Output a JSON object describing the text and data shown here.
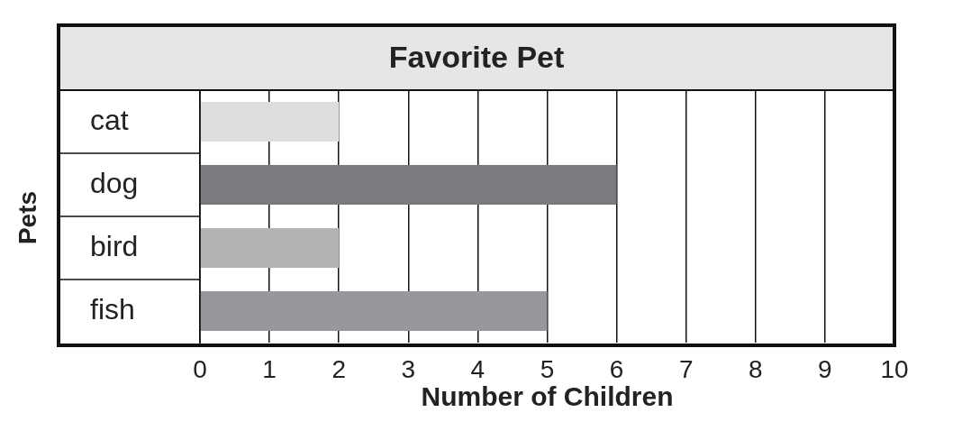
{
  "chart_data": {
    "type": "bar",
    "orientation": "horizontal",
    "title": "Favorite Pet",
    "xlabel": "Number of Children",
    "ylabel": "Pets",
    "categories": [
      "cat",
      "dog",
      "bird",
      "fish"
    ],
    "values": [
      2,
      6,
      2,
      5
    ],
    "colors": [
      "#dcdddf",
      "#7a7b7f",
      "#b3b4b6",
      "#97989b"
    ],
    "xlim": [
      0,
      10
    ],
    "xticks": [
      0,
      1,
      2,
      3,
      4,
      5,
      6,
      7,
      8,
      9,
      10
    ],
    "grid": "x",
    "legend": false
  }
}
